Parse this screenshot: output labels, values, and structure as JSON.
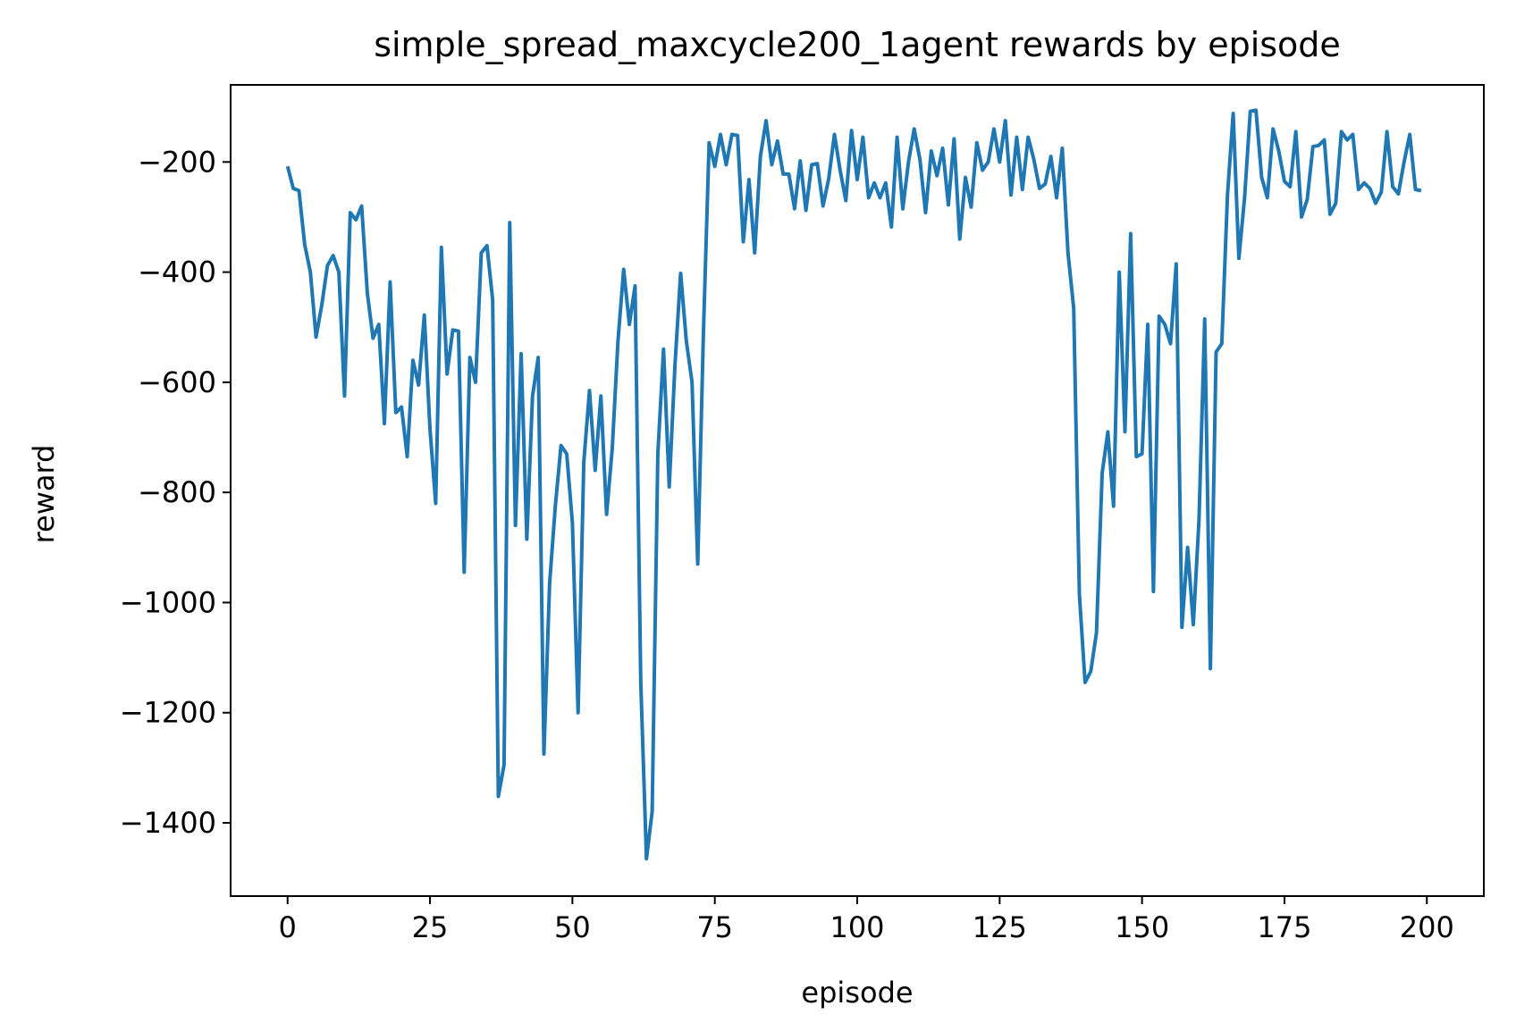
{
  "chart_data": {
    "type": "line",
    "title": "simple_spread_maxcycle200_1agent rewards by episode",
    "xlabel": "episode",
    "ylabel": "reward",
    "xlim": [
      -10,
      210
    ],
    "ylim": [
      -1533,
      -60
    ],
    "xticks": [
      0,
      25,
      50,
      75,
      100,
      125,
      150,
      175,
      200
    ],
    "xtick_labels": [
      "0",
      "25",
      "50",
      "75",
      "100",
      "125",
      "150",
      "175",
      "200"
    ],
    "yticks": [
      -200,
      -400,
      -600,
      -800,
      -1000,
      -1200,
      -1400
    ],
    "ytick_labels": [
      "−200",
      "−400",
      "−600",
      "−800",
      "−1000",
      "−1200",
      "−1400"
    ],
    "grid": false,
    "line_color": "#1f77b4",
    "series": [
      {
        "x": [
          0,
          1,
          2,
          3,
          4,
          5,
          6,
          7,
          8,
          9,
          10,
          11,
          12,
          13,
          14,
          15,
          16,
          17,
          18,
          19,
          20,
          21,
          22,
          23,
          24,
          25,
          26,
          27,
          28,
          29,
          30,
          31,
          32,
          33,
          34,
          35,
          36,
          37,
          38,
          39,
          40,
          41,
          42,
          43,
          44,
          45,
          46,
          47,
          48,
          49,
          50,
          51,
          52,
          53,
          54,
          55,
          56,
          57,
          58,
          59,
          60,
          61,
          62,
          63,
          64,
          65,
          66,
          67,
          68,
          69,
          70,
          71,
          72,
          73,
          74,
          75,
          76,
          77,
          78,
          79,
          80,
          81,
          82,
          83,
          84,
          85,
          86,
          87,
          88,
          89,
          90,
          91,
          92,
          93,
          94,
          95,
          96,
          97,
          98,
          99,
          100,
          101,
          102,
          103,
          104,
          105,
          106,
          107,
          108,
          109,
          110,
          111,
          112,
          113,
          114,
          115,
          116,
          117,
          118,
          119,
          120,
          121,
          122,
          123,
          124,
          125,
          126,
          127,
          128,
          129,
          130,
          131,
          132,
          133,
          134,
          135,
          136,
          137,
          138,
          139,
          140,
          141,
          142,
          143,
          144,
          145,
          146,
          147,
          148,
          149,
          150,
          151,
          152,
          153,
          154,
          155,
          156,
          157,
          158,
          159,
          160,
          161,
          162,
          163,
          164,
          165,
          166,
          167,
          168,
          169,
          170,
          171,
          172,
          173,
          174,
          175,
          176,
          177,
          178,
          179,
          180,
          181,
          182,
          183,
          184,
          185,
          186,
          187,
          188,
          189,
          190,
          191,
          192,
          193,
          194,
          195,
          196,
          197,
          198,
          199
        ],
        "y": [
          -208,
          -248,
          -252,
          -350,
          -400,
          -518,
          -460,
          -388,
          -370,
          -400,
          -625,
          -292,
          -305,
          -280,
          -438,
          -520,
          -495,
          -675,
          -418,
          -655,
          -645,
          -735,
          -560,
          -605,
          -478,
          -685,
          -820,
          -355,
          -585,
          -505,
          -507,
          -945,
          -555,
          -600,
          -365,
          -352,
          -450,
          -1352,
          -1295,
          -310,
          -860,
          -548,
          -885,
          -625,
          -555,
          -1275,
          -965,
          -825,
          -715,
          -730,
          -855,
          -1200,
          -745,
          -615,
          -760,
          -625,
          -840,
          -720,
          -525,
          -395,
          -495,
          -425,
          -1145,
          -1465,
          -1380,
          -730,
          -540,
          -790,
          -570,
          -402,
          -525,
          -600,
          -930,
          -510,
          -165,
          -208,
          -150,
          -205,
          -150,
          -152,
          -345,
          -232,
          -365,
          -190,
          -125,
          -205,
          -162,
          -222,
          -222,
          -285,
          -198,
          -288,
          -205,
          -203,
          -280,
          -230,
          -150,
          -215,
          -270,
          -143,
          -232,
          -155,
          -265,
          -238,
          -265,
          -238,
          -318,
          -155,
          -285,
          -200,
          -140,
          -195,
          -292,
          -180,
          -225,
          -175,
          -278,
          -158,
          -340,
          -228,
          -282,
          -165,
          -215,
          -200,
          -140,
          -200,
          -125,
          -260,
          -155,
          -250,
          -155,
          -195,
          -248,
          -240,
          -190,
          -265,
          -175,
          -365,
          -465,
          -985,
          -1145,
          -1125,
          -1055,
          -765,
          -690,
          -825,
          -400,
          -690,
          -330,
          -735,
          -730,
          -495,
          -980,
          -480,
          -495,
          -530,
          -385,
          -1045,
          -900,
          -1040,
          -850,
          -485,
          -1120,
          -545,
          -530,
          -260,
          -112,
          -375,
          -265,
          -108,
          -106,
          -228,
          -265,
          -140,
          -180,
          -235,
          -245,
          -145,
          -300,
          -268,
          -172,
          -170,
          -160,
          -295,
          -275,
          -145,
          -160,
          -150,
          -250,
          -238,
          -248,
          -275,
          -255,
          -145,
          -245,
          -258,
          -200,
          -150,
          -250,
          -252
        ]
      }
    ]
  }
}
